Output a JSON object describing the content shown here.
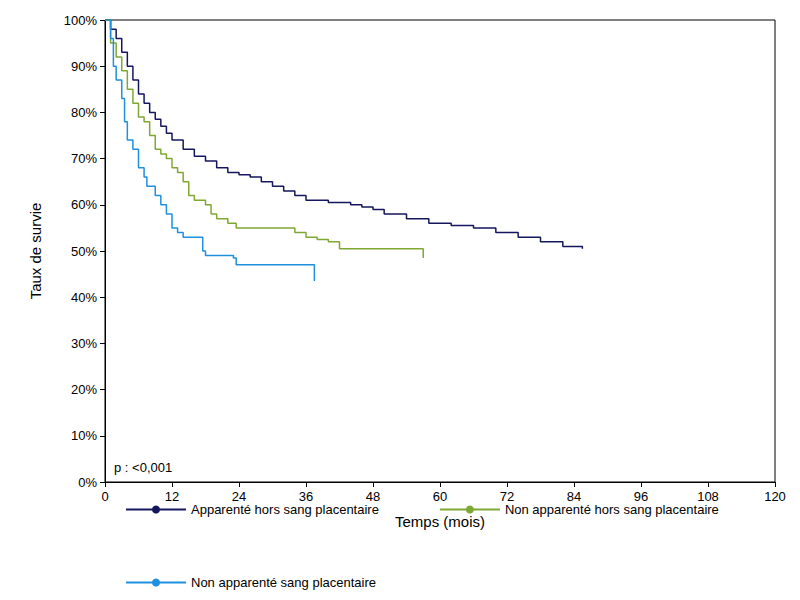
{
  "chart_data": {
    "type": "line",
    "line_style": "step",
    "xlabel": "Temps (mois)",
    "ylabel": "Taux de survie",
    "annotation": "p : <0,001",
    "xlim": [
      0,
      120
    ],
    "xticks": [
      0,
      12,
      24,
      36,
      48,
      60,
      72,
      84,
      96,
      108,
      120
    ],
    "ylim": [
      0,
      100
    ],
    "yticks": [
      {
        "value": 0,
        "label": "0%"
      },
      {
        "value": 10,
        "label": "10%"
      },
      {
        "value": 20,
        "label": "20%"
      },
      {
        "value": 30,
        "label": "30%"
      },
      {
        "value": 40,
        "label": "40%"
      },
      {
        "value": 50,
        "label": "50%"
      },
      {
        "value": 60,
        "label": "60%"
      },
      {
        "value": 70,
        "label": "70%"
      },
      {
        "value": 80,
        "label": "80%"
      },
      {
        "value": 90,
        "label": "90%"
      },
      {
        "value": 100,
        "label": "100%"
      }
    ],
    "grid": false,
    "legend": "bottom",
    "series": [
      {
        "name": "Apparenté hors sang placentaire",
        "color": "#14165e",
        "x": [
          0,
          1,
          2,
          3,
          4,
          5,
          6,
          7,
          8,
          9,
          10,
          11,
          12,
          14,
          16,
          18,
          20,
          22,
          24,
          26,
          28,
          30,
          32,
          34,
          36,
          40,
          44,
          46,
          48,
          50,
          54,
          58,
          62,
          66,
          70,
          74,
          78,
          82,
          84,
          85.5
        ],
        "values": [
          100,
          98,
          96,
          93,
          90,
          87,
          84,
          82,
          80,
          78.5,
          77,
          75.5,
          74,
          72,
          70.5,
          69.5,
          68,
          67,
          66.5,
          66,
          65,
          64,
          63,
          62,
          61,
          60.5,
          60,
          59.5,
          59,
          58,
          57,
          56,
          55.5,
          55,
          54,
          53,
          52,
          51,
          51,
          50.5
        ]
      },
      {
        "name": "Non apparenté hors sang placentaire",
        "color": "#7fa832",
        "x": [
          0,
          1,
          2,
          3,
          4,
          5,
          6,
          7,
          8,
          9,
          10,
          11,
          12,
          13,
          14,
          15,
          16,
          18,
          19,
          20,
          22,
          23.5,
          33,
          34,
          36,
          38,
          40,
          42,
          56.5,
          57
        ],
        "values": [
          100,
          95,
          92,
          89,
          85,
          82,
          79,
          78,
          75,
          72,
          71,
          70,
          68,
          67,
          65,
          62,
          61,
          60,
          58,
          57,
          56,
          55,
          55,
          54,
          53,
          52.5,
          52,
          50.5,
          50.5,
          48.5
        ]
      },
      {
        "name": "Non apparenté sang placentaire",
        "color": "#1f8fe0",
        "x": [
          0,
          1,
          1.5,
          2,
          3,
          3.5,
          4,
          5,
          6,
          7,
          7.5,
          9,
          10,
          11,
          12,
          13,
          14,
          17,
          17.5,
          18,
          20,
          23,
          23.5,
          37,
          37.5
        ],
        "values": [
          100,
          96,
          90,
          87,
          83,
          78,
          74,
          72,
          68,
          66,
          64,
          62,
          60,
          58,
          55,
          54,
          53,
          53,
          50,
          49,
          49,
          48.5,
          47,
          47,
          43.5
        ]
      }
    ]
  }
}
